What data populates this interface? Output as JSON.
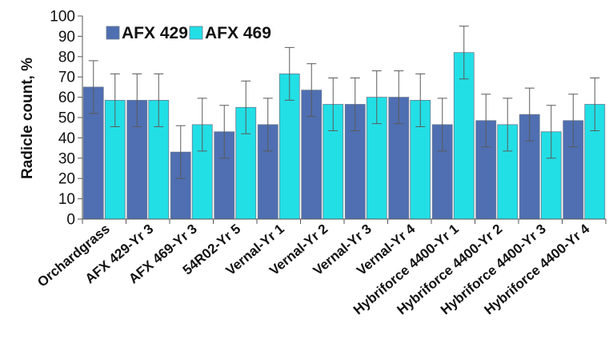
{
  "chart_data": {
    "type": "bar",
    "title": "",
    "xlabel": "",
    "ylabel": "Radicle count, %",
    "ylim": [
      0,
      100
    ],
    "yticks": [
      0,
      10,
      20,
      30,
      40,
      50,
      60,
      70,
      80,
      90,
      100
    ],
    "grid": false,
    "legend_position": "top-left",
    "categories": [
      "Orchardgrass",
      "AFX 429-Yr 3",
      "AFX 469-Yr 3",
      "54R02-Yr 5",
      "Vernal-Yr 1",
      "Vernal-Yr 2",
      "Vernal-Yr 3",
      "Vernal-Yr 4",
      "Hybriforce 4400-Yr 1",
      "Hybriforce 4400-Yr 2",
      "Hybriforce 4400-Yr 3",
      "Hybriforce 4400-Yr 4"
    ],
    "series": [
      {
        "name": "AFX 429",
        "color": "#4f6fb2",
        "values": [
          65,
          58.5,
          33,
          43,
          46.5,
          63.5,
          56.5,
          60,
          46.5,
          48.5,
          51.5,
          48.5
        ],
        "error": [
          13,
          13,
          13,
          13,
          13,
          13,
          13,
          13,
          13,
          13,
          13,
          13
        ]
      },
      {
        "name": "AFX 469",
        "color": "#22dfe6",
        "values": [
          58.5,
          58.5,
          46.5,
          55,
          71.5,
          56.5,
          60,
          58.5,
          82,
          46.5,
          43,
          56.5
        ],
        "error": [
          13,
          13,
          13,
          13,
          13,
          13,
          13,
          13,
          13,
          13,
          13,
          13
        ]
      }
    ]
  }
}
